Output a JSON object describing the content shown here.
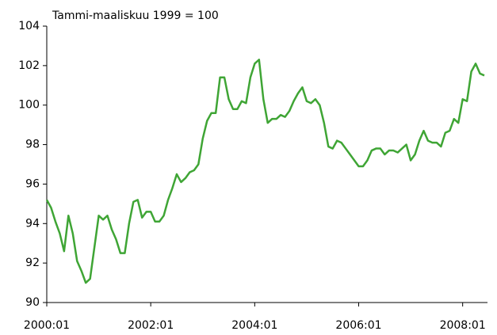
{
  "chart_data": {
    "type": "line",
    "subtitle": "Tammi-maaliskuu 1999 = 100",
    "categories": [
      "2000:01",
      null,
      null,
      null,
      null,
      null,
      null,
      null,
      null,
      null,
      null,
      null,
      null,
      null,
      null,
      null,
      null,
      null,
      null,
      null,
      null,
      null,
      null,
      null,
      "2002:01",
      null,
      null,
      null,
      null,
      null,
      null,
      null,
      null,
      null,
      null,
      null,
      null,
      null,
      null,
      null,
      null,
      null,
      null,
      null,
      null,
      null,
      null,
      null,
      "2004:01",
      null,
      null,
      null,
      null,
      null,
      null,
      null,
      null,
      null,
      null,
      null,
      null,
      null,
      null,
      null,
      null,
      null,
      null,
      null,
      null,
      null,
      null,
      null,
      "2006:01",
      null,
      null,
      null,
      null,
      null,
      null,
      null,
      null,
      null,
      null,
      null,
      null,
      null,
      null,
      null,
      null,
      null,
      null,
      null,
      null,
      null,
      null,
      null,
      "2008:01",
      null,
      null,
      null,
      null,
      null
    ],
    "series": [
      {
        "color": "#3fa535",
        "values": [
          95.2,
          94.8,
          94.1,
          93.5,
          92.6,
          94.4,
          93.5,
          92.1,
          91.6,
          91.0,
          91.2,
          92.8,
          94.4,
          94.2,
          94.4,
          93.7,
          93.2,
          92.5,
          92.5,
          94.0,
          95.1,
          95.2,
          94.3,
          94.6,
          94.6,
          94.1,
          94.1,
          94.4,
          95.2,
          95.8,
          96.5,
          96.1,
          96.3,
          96.6,
          96.7,
          97.0,
          98.3,
          99.2,
          99.6,
          99.6,
          101.4,
          101.4,
          100.3,
          99.8,
          99.8,
          100.2,
          100.1,
          101.4,
          102.1,
          102.3,
          100.3,
          99.1,
          99.3,
          99.3,
          99.5,
          99.4,
          99.7,
          100.2,
          100.6,
          100.9,
          100.2,
          100.1,
          100.3,
          100.0,
          99.1,
          97.9,
          97.8,
          98.2,
          98.1,
          97.8,
          97.5,
          97.2,
          96.9,
          96.9,
          97.2,
          97.7,
          97.8,
          97.8,
          97.5,
          97.7,
          97.7,
          97.6,
          97.8,
          98.0,
          97.2,
          97.5,
          98.2,
          98.7,
          98.2,
          98.1,
          98.1,
          97.9,
          98.6,
          98.7,
          99.3,
          99.1,
          100.3,
          100.2,
          101.7,
          102.1,
          101.6,
          101.5
        ]
      }
    ],
    "ylim": [
      90,
      104
    ],
    "yticks": [
      90,
      92,
      94,
      96,
      98,
      100,
      102,
      104
    ],
    "grid": false
  }
}
